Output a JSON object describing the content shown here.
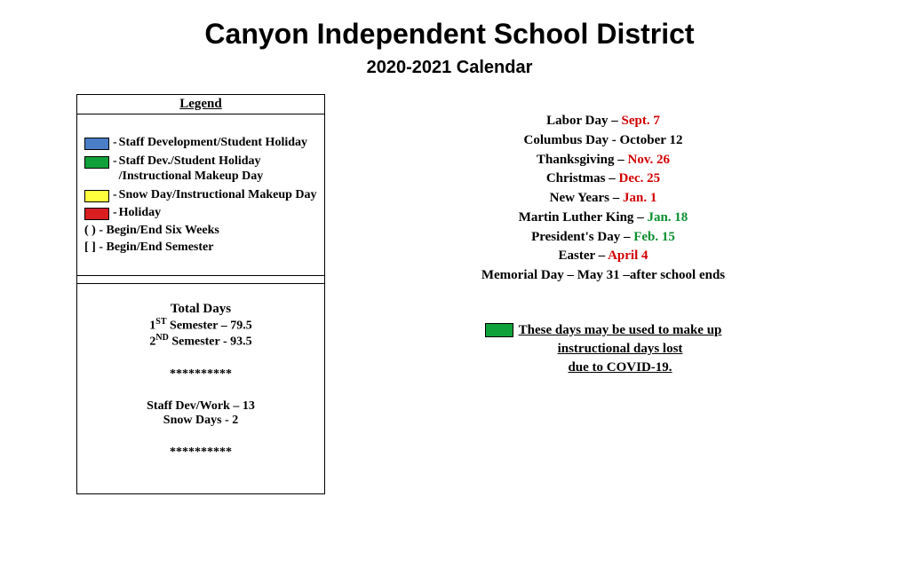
{
  "colors": {
    "blue": "#4a7fc8",
    "green": "#0fa13a",
    "yellow": "#ffff3e",
    "red": "#d81e1e",
    "text_red": "#d10000",
    "text_green": "#0a8f2e",
    "text_black": "#000000"
  },
  "header": {
    "title": "Canyon Independent School District",
    "subtitle": "2020-2021 Calendar"
  },
  "legend": {
    "title": "Legend",
    "swatches": [
      {
        "color_key": "blue",
        "label": "Staff Development/Student Holiday"
      },
      {
        "color_key": "green",
        "label": "Staff Dev./Student Holiday /Instructional Makeup Day"
      },
      {
        "color_key": "yellow",
        "label": "Snow Day/Instructional Makeup Day"
      },
      {
        "color_key": "red",
        "label": "Holiday"
      }
    ],
    "symbols": [
      {
        "symbol": "(   ) -",
        "label": "Begin/End Six Weeks"
      },
      {
        "symbol": "[   ] -",
        "label": "Begin/End Semester"
      }
    ]
  },
  "totals": {
    "title": "Total Days",
    "sem1_prefix": "1",
    "sem1_ord": "ST",
    "sem1_rest": " Semester – 79.5",
    "sem2_prefix": "2",
    "sem2_ord": "ND",
    "sem2_rest": " Semester  - 93.5",
    "asterisks": "**********",
    "staff_line": "Staff Dev/Work – 13",
    "snow_line": "Snow Days - 2"
  },
  "holidays": [
    {
      "name": "Labor Day",
      "sep": " – ",
      "date": "Sept. 7",
      "date_color": "red"
    },
    {
      "name": "Columbus Day",
      "sep": " - ",
      "date": "October 12",
      "date_color": "black"
    },
    {
      "name": "Thanksgiving",
      "sep": " – ",
      "date": "Nov. 26",
      "date_color": "red"
    },
    {
      "name": "Christmas",
      "sep": " – ",
      "date": "Dec. 25",
      "date_color": "red"
    },
    {
      "name": "New Years",
      "sep": " – ",
      "date": "Jan. 1",
      "date_color": "red"
    },
    {
      "name": "Martin Luther King",
      "sep": " – ",
      "date": "Jan. 18",
      "date_color": "green"
    },
    {
      "name": "President's Day",
      "sep": " – ",
      "date": "Feb. 15",
      "date_color": "green"
    },
    {
      "name": "Easter",
      "sep": " – ",
      "date": "April 4",
      "date_color": "red"
    },
    {
      "name": "Memorial Day",
      "sep": " – ",
      "date": "May 31 –after school ends",
      "date_color": "black"
    }
  ],
  "makeup_note": {
    "swatch_color_key": "green",
    "line1": "These days may be used to make up",
    "line2": "instructional days lost",
    "line3": "due to COVID-19."
  }
}
